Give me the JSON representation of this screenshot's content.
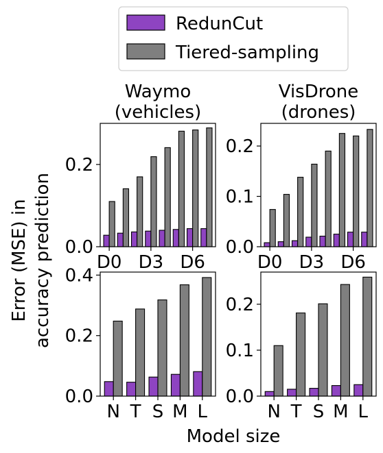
{
  "figure": {
    "ylabel_line1": "Error (MSE) in",
    "ylabel_line2": "accuracy prediction",
    "xlabel": "Model size"
  },
  "legend": {
    "placement": "top-center",
    "entries": [
      {
        "label": "RedunCut",
        "color": "#8e44c1"
      },
      {
        "label": "Tiered-sampling",
        "color": "#7f7f7f"
      }
    ]
  },
  "chart_data": [
    {
      "type": "bar",
      "title_line1": "Waymo",
      "title_line2": "(vehicles)",
      "categories": [
        "D0",
        "D1",
        "D2",
        "D3",
        "D4",
        "D5",
        "D6",
        "D7"
      ],
      "tick_labels": [
        "D0",
        "D3",
        "D6"
      ],
      "yticks": [
        "0.0",
        "0.2"
      ],
      "ylim": [
        0,
        0.3
      ],
      "series": [
        {
          "name": "RedunCut",
          "values": [
            0.028,
            0.033,
            0.036,
            0.038,
            0.04,
            0.042,
            0.044,
            0.044
          ]
        },
        {
          "name": "Tiered-sampling",
          "values": [
            0.11,
            0.141,
            0.17,
            0.219,
            0.241,
            0.281,
            0.284,
            0.289
          ]
        }
      ]
    },
    {
      "type": "bar",
      "title_line1": "VisDrone",
      "title_line2": "(drones)",
      "categories": [
        "D0",
        "D1",
        "D2",
        "D3",
        "D4",
        "D5",
        "D6",
        "D7"
      ],
      "tick_labels": [
        "D0",
        "D3",
        "D6"
      ],
      "yticks": [
        "0.0",
        "0.1",
        "0.2"
      ],
      "ylim": [
        0,
        0.245
      ],
      "series": [
        {
          "name": "RedunCut",
          "values": [
            0.008,
            0.01,
            0.012,
            0.019,
            0.021,
            0.025,
            0.029,
            0.029
          ]
        },
        {
          "name": "Tiered-sampling",
          "values": [
            0.074,
            0.104,
            0.138,
            0.164,
            0.19,
            0.225,
            0.22,
            0.233
          ]
        }
      ]
    },
    {
      "type": "bar",
      "categories": [
        "N",
        "T",
        "S",
        "M",
        "L"
      ],
      "tick_labels": [
        "N",
        "T",
        "S",
        "M",
        "L"
      ],
      "yticks": [
        "0.0",
        "0.2",
        "0.4"
      ],
      "ylim": [
        0,
        0.41
      ],
      "series": [
        {
          "name": "RedunCut",
          "values": [
            0.048,
            0.046,
            0.063,
            0.072,
            0.081
          ]
        },
        {
          "name": "Tiered-sampling",
          "values": [
            0.248,
            0.288,
            0.318,
            0.368,
            0.392
          ]
        }
      ]
    },
    {
      "type": "bar",
      "categories": [
        "N",
        "T",
        "S",
        "M",
        "L"
      ],
      "tick_labels": [
        "N",
        "T",
        "S",
        "M",
        "L"
      ],
      "yticks": [
        "0.0",
        "0.1",
        "0.2"
      ],
      "ylim": [
        0,
        0.27
      ],
      "series": [
        {
          "name": "RedunCut",
          "values": [
            0.01,
            0.015,
            0.017,
            0.023,
            0.025
          ]
        },
        {
          "name": "Tiered-sampling",
          "values": [
            0.11,
            0.181,
            0.201,
            0.243,
            0.259
          ]
        }
      ]
    }
  ]
}
